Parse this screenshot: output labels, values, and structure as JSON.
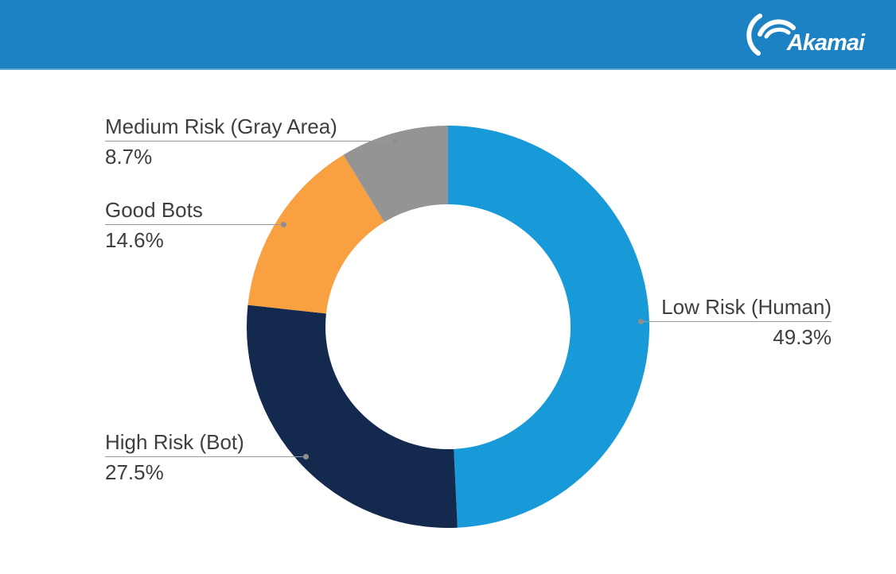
{
  "header": {
    "brand": "Akamai",
    "background_color": "#1d82c4"
  },
  "chart_data": {
    "type": "pie",
    "subtype": "donut",
    "title": "",
    "direction": "clockwise",
    "start_angle_deg": 0,
    "inner_radius_ratio": 0.609,
    "legend_position": "callouts",
    "slices": [
      {
        "label": "Low Risk (Human)",
        "value": 49.3,
        "percent_label": "49.3%",
        "color": "#189ad9"
      },
      {
        "label": "High Risk (Bot)",
        "value": 27.5,
        "percent_label": "27.5%",
        "color": "#14294e"
      },
      {
        "label": "Good Bots",
        "value": 14.6,
        "percent_label": "14.6%",
        "color": "#f9a041"
      },
      {
        "label": "Medium Risk (Gray Area)",
        "value": 8.7,
        "percent_label": "8.7%",
        "color": "#949494"
      }
    ]
  }
}
